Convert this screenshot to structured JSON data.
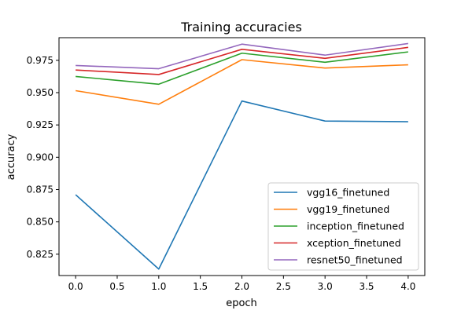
{
  "chart_data": {
    "type": "line",
    "title": "Training accuracies",
    "xlabel": "epoch",
    "ylabel": "accuracy",
    "x": [
      0,
      1,
      2,
      3,
      4
    ],
    "xlim": [
      -0.2,
      4.2
    ],
    "ylim": [
      0.8085,
      0.9925
    ],
    "xticks": [
      0.0,
      0.5,
      1.0,
      1.5,
      2.0,
      2.5,
      3.0,
      3.5,
      4.0
    ],
    "xtick_labels": [
      "0.0",
      "0.5",
      "1.0",
      "1.5",
      "2.0",
      "2.5",
      "3.0",
      "3.5",
      "4.0"
    ],
    "yticks": [
      0.825,
      0.85,
      0.875,
      0.9,
      0.925,
      0.95,
      0.975
    ],
    "ytick_labels": [
      "0.825",
      "0.850",
      "0.875",
      "0.900",
      "0.925",
      "0.950",
      "0.975"
    ],
    "grid": false,
    "legend_position": "lower-right",
    "series": [
      {
        "name": "vgg16_finetuned",
        "color": "#1f77b4",
        "values": [
          0.871,
          0.8135,
          0.9435,
          0.928,
          0.9275
        ]
      },
      {
        "name": "vgg19_finetuned",
        "color": "#ff7f0e",
        "values": [
          0.9515,
          0.941,
          0.9755,
          0.969,
          0.9715
        ]
      },
      {
        "name": "inception_finetuned",
        "color": "#2ca02c",
        "values": [
          0.9625,
          0.9565,
          0.9805,
          0.9735,
          0.9815
        ]
      },
      {
        "name": "xception_finetuned",
        "color": "#d62728",
        "values": [
          0.9675,
          0.964,
          0.9835,
          0.9765,
          0.985
        ]
      },
      {
        "name": "resnet50_finetuned",
        "color": "#9467bd",
        "values": [
          0.971,
          0.9685,
          0.9875,
          0.979,
          0.988
        ]
      }
    ]
  }
}
